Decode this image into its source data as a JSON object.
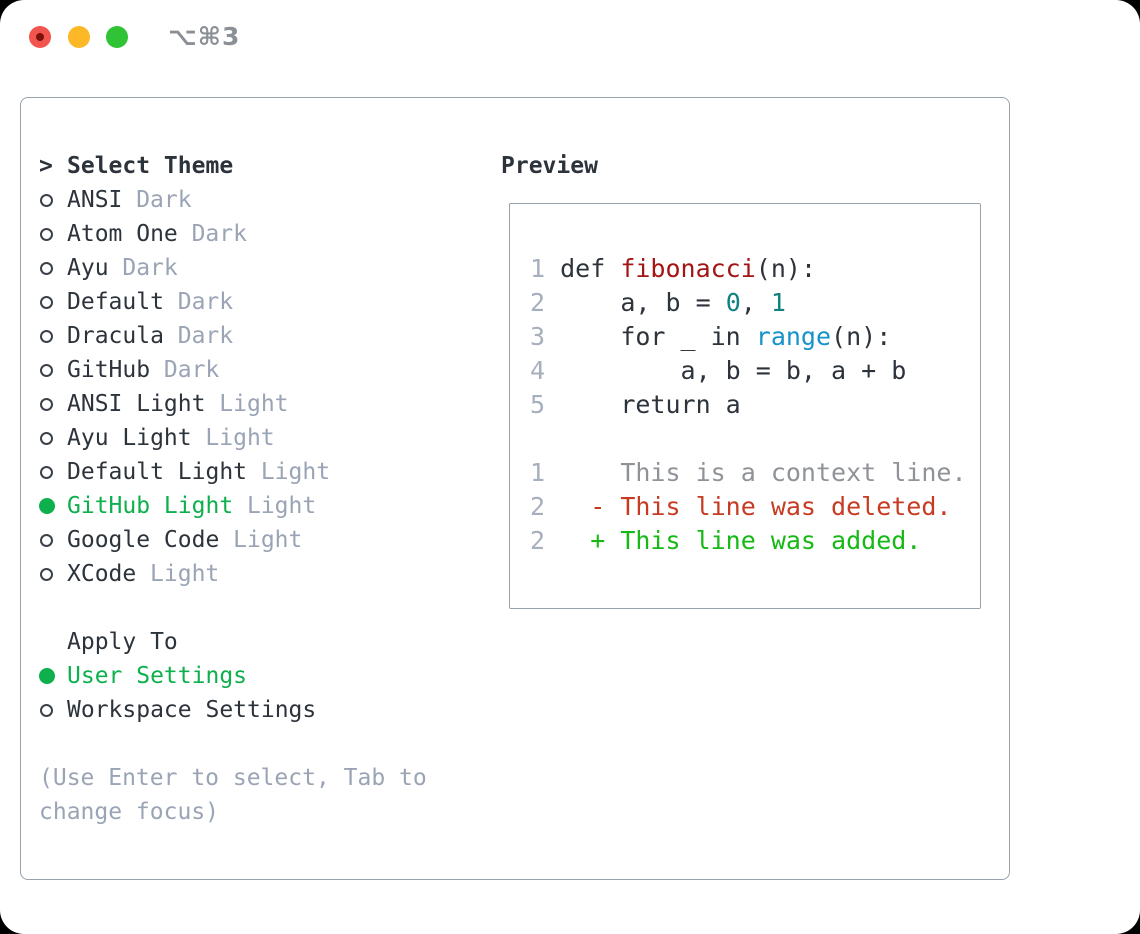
{
  "window": {
    "title": "⌥⌘3"
  },
  "sidebar": {
    "prompt": ">",
    "title": "Select Theme",
    "themes": [
      {
        "name": "ANSI",
        "variant": "Dark",
        "selected": false
      },
      {
        "name": "Atom One",
        "variant": "Dark",
        "selected": false
      },
      {
        "name": "Ayu",
        "variant": "Dark",
        "selected": false
      },
      {
        "name": "Default",
        "variant": "Dark",
        "selected": false
      },
      {
        "name": "Dracula",
        "variant": "Dark",
        "selected": false
      },
      {
        "name": "GitHub",
        "variant": "Dark",
        "selected": false
      },
      {
        "name": "ANSI Light",
        "variant": "Light",
        "selected": false
      },
      {
        "name": "Ayu Light",
        "variant": "Light",
        "selected": false
      },
      {
        "name": "Default Light",
        "variant": "Light",
        "selected": false
      },
      {
        "name": "GitHub Light",
        "variant": "Light",
        "selected": true
      },
      {
        "name": "Google Code",
        "variant": "Light",
        "selected": false
      },
      {
        "name": "XCode",
        "variant": "Light",
        "selected": false
      }
    ],
    "apply_to": {
      "title": "Apply To",
      "options": [
        {
          "label": "User Settings",
          "selected": true
        },
        {
          "label": "Workspace Settings",
          "selected": false
        }
      ]
    },
    "help_lines": [
      "(Use Enter to select, Tab to",
      "change focus)"
    ]
  },
  "preview": {
    "title": "Preview",
    "lines": [
      {
        "tokens": [
          [
            "lineno",
            "1"
          ],
          [
            "plain",
            " def "
          ],
          [
            "func",
            "fibonacci"
          ],
          [
            "plain",
            "(n):"
          ]
        ]
      },
      {
        "tokens": [
          [
            "lineno",
            "2"
          ],
          [
            "plain",
            "     a, b = "
          ],
          [
            "num",
            "0"
          ],
          [
            "plain",
            ", "
          ],
          [
            "num",
            "1"
          ]
        ]
      },
      {
        "tokens": [
          [
            "lineno",
            "3"
          ],
          [
            "plain",
            "     for _ in "
          ],
          [
            "builtin",
            "range"
          ],
          [
            "plain",
            "(n):"
          ]
        ]
      },
      {
        "tokens": [
          [
            "lineno",
            "4"
          ],
          [
            "plain",
            "         a, b = b, a + b"
          ]
        ]
      },
      {
        "tokens": [
          [
            "lineno",
            "5"
          ],
          [
            "plain",
            "     return a"
          ]
        ]
      },
      {
        "tokens": []
      },
      {
        "tokens": [
          [
            "lineno",
            "1"
          ],
          [
            "ctx",
            "     This is a context line."
          ]
        ]
      },
      {
        "tokens": [
          [
            "lineno",
            "2"
          ],
          [
            "plain",
            "   "
          ],
          [
            "del",
            "- This line was deleted."
          ]
        ]
      },
      {
        "tokens": [
          [
            "lineno",
            "2"
          ],
          [
            "plain",
            "   "
          ],
          [
            "add",
            "+ This line was added."
          ]
        ]
      }
    ]
  },
  "colors": {
    "text_dark": "#2d333b",
    "muted_gray": "#9aa4b5",
    "lineno_gray": "#a6afbd",
    "ctx_gray": "#8f9398",
    "border_gray": "#9aa2ae",
    "circle_stroke": "#3a4149",
    "title_gray": "#8b9096",
    "accent_green": "#0db04c",
    "added_green": "#16b916",
    "deleted_red": "#c63b22",
    "func_red": "#a31515",
    "builtin_blue": "#1792cb",
    "number_teal": "#0f8181",
    "traffic_red": "#f2544e",
    "traffic_red_dot": "#7c110c",
    "traffic_yellow": "#fcb827",
    "traffic_green": "#2fc335"
  }
}
